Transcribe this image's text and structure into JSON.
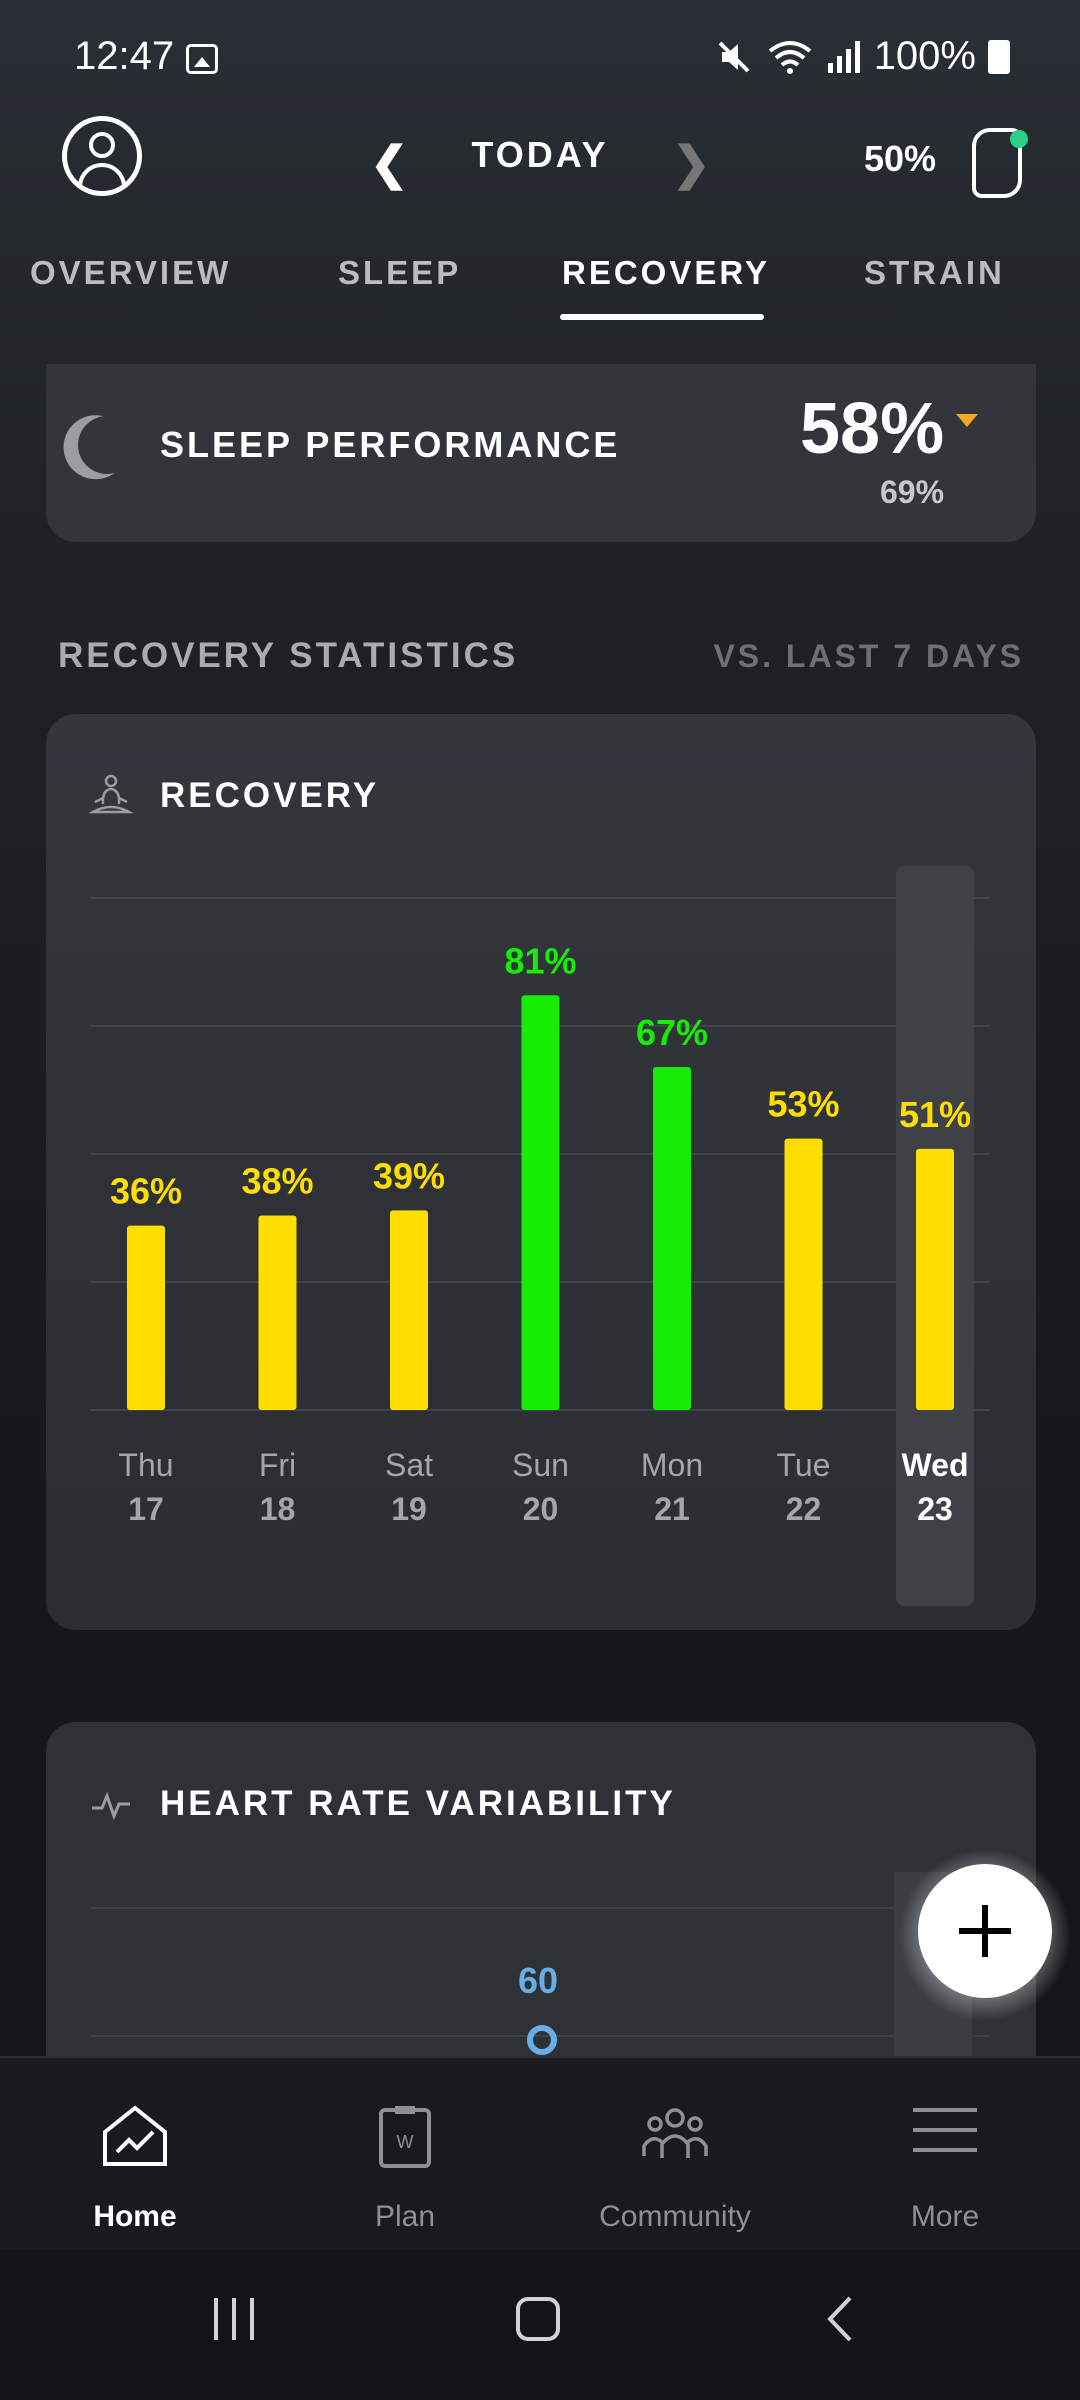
{
  "status_bar": {
    "time": "12:47",
    "battery": "100%",
    "icons": [
      "gallery-icon",
      "mute-icon",
      "wifi-icon",
      "signal-icon",
      "battery-icon"
    ]
  },
  "header": {
    "date_label": "TODAY",
    "strap_battery": "50%"
  },
  "tabs": [
    {
      "label": "OVERVIEW",
      "active": false
    },
    {
      "label": "SLEEP",
      "active": false
    },
    {
      "label": "RECOVERY",
      "active": true
    },
    {
      "label": "STRAIN",
      "active": false
    }
  ],
  "sleep_performance": {
    "label": "SLEEP PERFORMANCE",
    "value": "58%",
    "comparison": "69%",
    "trend_color": "#f5a623"
  },
  "statistics": {
    "title": "RECOVERY STATISTICS",
    "compare_label": "VS. LAST 7 DAYS"
  },
  "recovery_card": {
    "title": "RECOVERY",
    "highlight_index": 6
  },
  "chart_data": {
    "type": "bar",
    "categories": [
      "Thu 17",
      "Fri 18",
      "Sat 19",
      "Sun 20",
      "Mon 21",
      "Tue 22",
      "Wed 23"
    ],
    "day_names": [
      "Thu",
      "Fri",
      "Sat",
      "Sun",
      "Mon",
      "Tue",
      "Wed"
    ],
    "day_numbers": [
      "17",
      "18",
      "19",
      "20",
      "21",
      "22",
      "23"
    ],
    "values": [
      36,
      38,
      39,
      81,
      67,
      53,
      51
    ],
    "value_labels": [
      "36%",
      "38%",
      "39%",
      "81%",
      "67%",
      "53%",
      "51%"
    ],
    "colors": [
      "#ffde00",
      "#ffde00",
      "#ffde00",
      "#16ec06",
      "#16ec06",
      "#ffde00",
      "#ffde00"
    ],
    "ylim": [
      0,
      100
    ],
    "grid": true
  },
  "hrv_card": {
    "title": "HEART RATE VARIABILITY",
    "partial_value": "60",
    "value_color": "#67aee6"
  },
  "fab": {
    "icon": "plus-icon"
  },
  "bottom_nav": [
    {
      "label": "Home",
      "icon": "home-icon",
      "active": true
    },
    {
      "label": "Plan",
      "icon": "plan-icon",
      "active": false
    },
    {
      "label": "Community",
      "icon": "community-icon",
      "active": false
    },
    {
      "label": "More",
      "icon": "menu-icon",
      "active": false
    }
  ]
}
